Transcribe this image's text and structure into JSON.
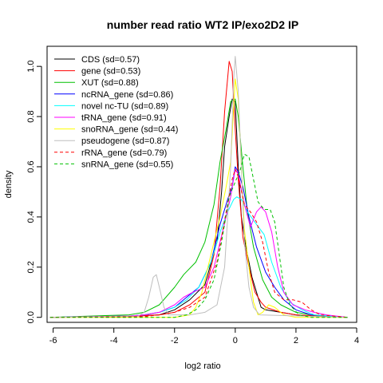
{
  "chart_data": {
    "type": "line",
    "title": "number read ratio WT2 IP/exo2D2 IP",
    "xlabel": "log2 ratio",
    "ylabel": "density",
    "xlim": [
      -6.2,
      4.0
    ],
    "ylim": [
      -0.02,
      1.08
    ],
    "x_ticks": [
      -6,
      -4,
      -2,
      0,
      2,
      4
    ],
    "x_tick_labels": [
      "-6",
      "-4",
      "-2",
      "0",
      "2",
      "4"
    ],
    "y_ticks": [
      0.0,
      0.2,
      0.4,
      0.6,
      0.8,
      1.0
    ],
    "y_tick_labels": [
      "0.0",
      "0.2",
      "0.4",
      "0.6",
      "0.8",
      "1.0"
    ],
    "legend_position": "top-left",
    "series": [
      {
        "name": "CDS (sd=0.57)",
        "color": "#000000",
        "dash": "solid",
        "points": [
          [
            -6.1,
            0
          ],
          [
            -3.5,
            0.005
          ],
          [
            -2.5,
            0.01
          ],
          [
            -2,
            0.03
          ],
          [
            -1.5,
            0.07
          ],
          [
            -1,
            0.13
          ],
          [
            -0.6,
            0.3
          ],
          [
            -0.45,
            0.5
          ],
          [
            -0.35,
            0.68
          ],
          [
            -0.2,
            0.8
          ],
          [
            -0.1,
            0.87
          ],
          [
            0,
            0.86
          ],
          [
            0.1,
            0.6
          ],
          [
            0.2,
            0.4
          ],
          [
            0.35,
            0.28
          ],
          [
            0.55,
            0.16
          ],
          [
            0.7,
            0.1
          ],
          [
            0.85,
            0.04
          ],
          [
            1,
            0.03
          ],
          [
            1.5,
            0.02
          ],
          [
            2,
            0.01
          ],
          [
            2.5,
            0.005
          ],
          [
            3.7,
            0
          ]
        ]
      },
      {
        "name": "gene (sd=0.53)",
        "color": "#ff0000",
        "dash": "solid",
        "points": [
          [
            -6.1,
            0
          ],
          [
            -3.5,
            0.003
          ],
          [
            -2.5,
            0.01
          ],
          [
            -2,
            0.02
          ],
          [
            -1.5,
            0.05
          ],
          [
            -1,
            0.1
          ],
          [
            -0.7,
            0.25
          ],
          [
            -0.5,
            0.52
          ],
          [
            -0.35,
            0.82
          ],
          [
            -0.2,
            1.02
          ],
          [
            -0.1,
            0.98
          ],
          [
            0,
            0.75
          ],
          [
            0.1,
            0.55
          ],
          [
            0.25,
            0.32
          ],
          [
            0.45,
            0.2
          ],
          [
            0.65,
            0.1
          ],
          [
            0.85,
            0.06
          ],
          [
            1,
            0.04
          ],
          [
            1.5,
            0.02
          ],
          [
            2,
            0.01
          ],
          [
            3.7,
            0
          ]
        ]
      },
      {
        "name": "XUT (sd=0.88)",
        "color": "#00c000",
        "dash": "solid",
        "points": [
          [
            -6.1,
            0
          ],
          [
            -3.5,
            0.01
          ],
          [
            -3,
            0.02
          ],
          [
            -2.5,
            0.05
          ],
          [
            -2,
            0.12
          ],
          [
            -1.7,
            0.17
          ],
          [
            -1.3,
            0.22
          ],
          [
            -1,
            0.3
          ],
          [
            -0.7,
            0.45
          ],
          [
            -0.5,
            0.62
          ],
          [
            -0.3,
            0.75
          ],
          [
            -0.15,
            0.86
          ],
          [
            0,
            0.87
          ],
          [
            0.1,
            0.8
          ],
          [
            0.25,
            0.6
          ],
          [
            0.4,
            0.42
          ],
          [
            0.6,
            0.28
          ],
          [
            0.9,
            0.15
          ],
          [
            1.2,
            0.08
          ],
          [
            1.5,
            0.05
          ],
          [
            2,
            0.02
          ],
          [
            2.5,
            0.01
          ],
          [
            3.7,
            0
          ]
        ]
      },
      {
        "name": "ncRNA_gene (sd=0.86)",
        "color": "#0000ff",
        "dash": "solid",
        "points": [
          [
            -6.1,
            0
          ],
          [
            -3.5,
            0.005
          ],
          [
            -3,
            0.01
          ],
          [
            -2.5,
            0.02
          ],
          [
            -2,
            0.04
          ],
          [
            -1.6,
            0.08
          ],
          [
            -1.2,
            0.12
          ],
          [
            -0.8,
            0.22
          ],
          [
            -0.5,
            0.37
          ],
          [
            -0.25,
            0.47
          ],
          [
            -0.1,
            0.52
          ],
          [
            0,
            0.6
          ],
          [
            0.1,
            0.58
          ],
          [
            0.25,
            0.52
          ],
          [
            0.45,
            0.4
          ],
          [
            0.7,
            0.28
          ],
          [
            1,
            0.18
          ],
          [
            1.3,
            0.12
          ],
          [
            1.6,
            0.07
          ],
          [
            2,
            0.03
          ],
          [
            2.5,
            0.01
          ],
          [
            3.7,
            0
          ]
        ]
      },
      {
        "name": "novel nc-TU (sd=0.89)",
        "color": "#00ffff",
        "dash": "solid",
        "points": [
          [
            -6.1,
            0
          ],
          [
            -3.5,
            0.005
          ],
          [
            -3,
            0.01
          ],
          [
            -2.5,
            0.02
          ],
          [
            -2,
            0.04
          ],
          [
            -1.6,
            0.07
          ],
          [
            -1.2,
            0.12
          ],
          [
            -0.8,
            0.22
          ],
          [
            -0.5,
            0.34
          ],
          [
            -0.25,
            0.42
          ],
          [
            -0.05,
            0.47
          ],
          [
            0.05,
            0.48
          ],
          [
            0.2,
            0.47
          ],
          [
            0.4,
            0.42
          ],
          [
            0.7,
            0.37
          ],
          [
            0.95,
            0.33
          ],
          [
            1.2,
            0.22
          ],
          [
            1.5,
            0.12
          ],
          [
            1.8,
            0.06
          ],
          [
            2.2,
            0.03
          ],
          [
            2.6,
            0.01
          ],
          [
            3.7,
            0
          ]
        ]
      },
      {
        "name": "tRNA_gene (sd=0.91)",
        "color": "#ff00ff",
        "dash": "solid",
        "points": [
          [
            -6.1,
            0
          ],
          [
            -3.5,
            0.005
          ],
          [
            -3,
            0.01
          ],
          [
            -2.5,
            0.02
          ],
          [
            -2,
            0.05
          ],
          [
            -1.7,
            0.08
          ],
          [
            -1.4,
            0.1
          ],
          [
            -1,
            0.12
          ],
          [
            -0.7,
            0.2
          ],
          [
            -0.4,
            0.35
          ],
          [
            -0.15,
            0.48
          ],
          [
            0,
            0.59
          ],
          [
            0.1,
            0.57
          ],
          [
            0.3,
            0.45
          ],
          [
            0.5,
            0.36
          ],
          [
            0.7,
            0.42
          ],
          [
            0.85,
            0.44
          ],
          [
            1,
            0.42
          ],
          [
            1.2,
            0.34
          ],
          [
            1.4,
            0.2
          ],
          [
            1.6,
            0.1
          ],
          [
            1.9,
            0.05
          ],
          [
            2.3,
            0.03
          ],
          [
            2.6,
            0.02
          ],
          [
            3,
            0.01
          ],
          [
            3.7,
            0
          ]
        ]
      },
      {
        "name": "snoRNA_gene (sd=0.44)",
        "color": "#ffff00",
        "dash": "solid",
        "points": [
          [
            -6.1,
            0
          ],
          [
            -2,
            0
          ],
          [
            -1.5,
            0.01
          ],
          [
            -1.3,
            0.04
          ],
          [
            -1.1,
            0.1
          ],
          [
            -0.9,
            0.2
          ],
          [
            -0.7,
            0.3
          ],
          [
            -0.5,
            0.4
          ],
          [
            -0.3,
            0.52
          ],
          [
            -0.15,
            0.62
          ],
          [
            0,
            0.95
          ],
          [
            0.1,
            0.87
          ],
          [
            0.2,
            0.6
          ],
          [
            0.3,
            0.35
          ],
          [
            0.45,
            0.2
          ],
          [
            0.6,
            0.06
          ],
          [
            0.75,
            0.01
          ],
          [
            0.9,
            0.02
          ],
          [
            1.1,
            0.05
          ],
          [
            1.3,
            0.04
          ],
          [
            1.6,
            0.01
          ],
          [
            2,
            0
          ],
          [
            3.7,
            0
          ]
        ]
      },
      {
        "name": "pseudogene (sd=0.87)",
        "color": "#bebebe",
        "dash": "solid",
        "points": [
          [
            -6.1,
            0
          ],
          [
            -3.2,
            0.005
          ],
          [
            -3,
            0.02
          ],
          [
            -2.85,
            0.08
          ],
          [
            -2.7,
            0.16
          ],
          [
            -2.6,
            0.17
          ],
          [
            -2.5,
            0.12
          ],
          [
            -2.35,
            0.04
          ],
          [
            -2.2,
            0.01
          ],
          [
            -1.5,
            0.01
          ],
          [
            -1,
            0.02
          ],
          [
            -0.6,
            0.05
          ],
          [
            -0.35,
            0.2
          ],
          [
            -0.15,
            0.6
          ],
          [
            -0.05,
            0.95
          ],
          [
            0,
            1.04
          ],
          [
            0.1,
            0.9
          ],
          [
            0.2,
            0.6
          ],
          [
            0.3,
            0.3
          ],
          [
            0.45,
            0.12
          ],
          [
            0.6,
            0.04
          ],
          [
            0.8,
            0.01
          ],
          [
            3.7,
            0
          ]
        ]
      },
      {
        "name": "rRNA_gene (sd=0.79)",
        "color": "#ff0000",
        "dash": "dashed",
        "points": [
          [
            -6.1,
            0
          ],
          [
            -3,
            0.003
          ],
          [
            -2.5,
            0.01
          ],
          [
            -2,
            0.02
          ],
          [
            -1.5,
            0.04
          ],
          [
            -1,
            0.08
          ],
          [
            -0.6,
            0.22
          ],
          [
            -0.3,
            0.42
          ],
          [
            -0.1,
            0.55
          ],
          [
            0,
            0.59
          ],
          [
            0.1,
            0.56
          ],
          [
            0.3,
            0.45
          ],
          [
            0.5,
            0.42
          ],
          [
            0.7,
            0.38
          ],
          [
            0.9,
            0.3
          ],
          [
            1.1,
            0.18
          ],
          [
            1.3,
            0.1
          ],
          [
            1.6,
            0.07
          ],
          [
            1.9,
            0.07
          ],
          [
            2.2,
            0.06
          ],
          [
            2.5,
            0.03
          ],
          [
            2.8,
            0.01
          ],
          [
            3.7,
            0
          ]
        ]
      },
      {
        "name": "snRNA_gene (sd=0.55)",
        "color": "#00c000",
        "dash": "dashed",
        "points": [
          [
            -6.1,
            0
          ],
          [
            -2,
            0
          ],
          [
            -1.6,
            0.01
          ],
          [
            -1.3,
            0.03
          ],
          [
            -1,
            0.07
          ],
          [
            -0.7,
            0.15
          ],
          [
            -0.45,
            0.3
          ],
          [
            -0.2,
            0.48
          ],
          [
            0,
            0.54
          ],
          [
            0.15,
            0.58
          ],
          [
            0.3,
            0.65
          ],
          [
            0.45,
            0.64
          ],
          [
            0.6,
            0.55
          ],
          [
            0.75,
            0.46
          ],
          [
            0.95,
            0.43
          ],
          [
            1.15,
            0.43
          ],
          [
            1.3,
            0.38
          ],
          [
            1.45,
            0.25
          ],
          [
            1.6,
            0.12
          ],
          [
            1.8,
            0.05
          ],
          [
            2.1,
            0.01
          ],
          [
            2.5,
            0
          ],
          [
            3.7,
            0
          ]
        ]
      }
    ]
  }
}
